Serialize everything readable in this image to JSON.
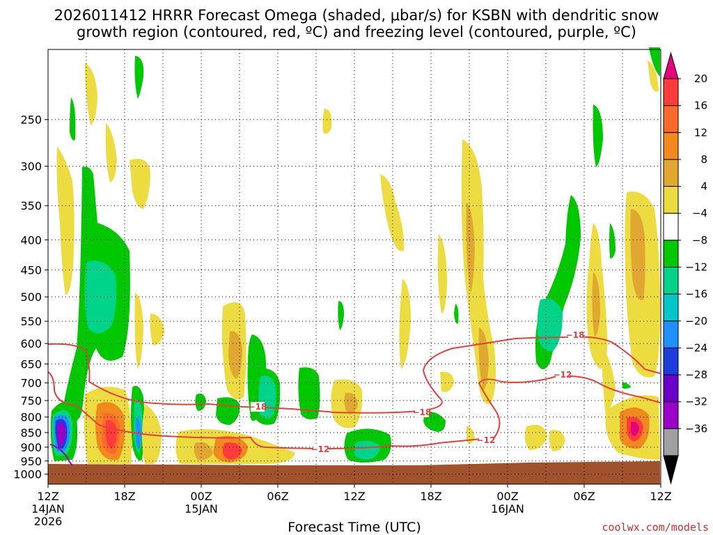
{
  "chart_data": {
    "type": "heatmap",
    "title": [
      "2026011412 HRRR Forecast Omega (shaded, μbar/s) for KSBN with dendritic snow",
      "growth region (contoured, red, ºC) and freezing level (contoured, purple, ºC)"
    ],
    "xlabel": "Forecast Time (UTC)",
    "ylabel": "",
    "x_ticks": [
      {
        "t": 0,
        "label": "12Z",
        "sub": [
          "14JAN",
          "2026"
        ]
      },
      {
        "t": 6,
        "label": "18Z",
        "sub": []
      },
      {
        "t": 12,
        "label": "00Z",
        "sub": [
          "15JAN"
        ]
      },
      {
        "t": 18,
        "label": "06Z",
        "sub": []
      },
      {
        "t": 24,
        "label": "12Z",
        "sub": []
      },
      {
        "t": 30,
        "label": "18Z",
        "sub": []
      },
      {
        "t": 36,
        "label": "00Z",
        "sub": [
          "16JAN"
        ]
      },
      {
        "t": 42,
        "label": "06Z",
        "sub": []
      },
      {
        "t": 48,
        "label": "12Z",
        "sub": []
      }
    ],
    "y_ticks": [
      250,
      300,
      350,
      400,
      450,
      500,
      550,
      600,
      650,
      700,
      750,
      800,
      850,
      900,
      950,
      1000
    ],
    "xlim": [
      0,
      48
    ],
    "ylim_hPa": [
      1040,
      190
    ],
    "grid": true,
    "colorbar": {
      "labels": [
        "20",
        "16",
        "12",
        "8",
        "4",
        "−4",
        "−8",
        "−12",
        "−16",
        "−20",
        "−24",
        "−28",
        "−32",
        "−36"
      ],
      "levels": [
        20,
        16,
        12,
        8,
        4,
        -4,
        -8,
        -12,
        -16,
        -20,
        -24,
        -28,
        -32,
        -36
      ],
      "colors": [
        "#e6007e",
        "#ff3b3b",
        "#ff6a2a",
        "#f08a1e",
        "#e0a830",
        "#ecdc40",
        "#ffffff",
        "#00c800",
        "#00d48a",
        "#00c8c8",
        "#1e90ff",
        "#1e3cdc",
        "#6a00c8",
        "#9a00c8",
        "#a0a0a0",
        "#000000"
      ]
    },
    "contours": {
      "dgz_labels": [
        "−18",
        "−18",
        "−12",
        "−18",
        "−12",
        "−12"
      ],
      "dgz_color": "#e2413e",
      "freezing_color": "#a000c8"
    },
    "ground_color": "#a0522d",
    "credit": "coolwx.com/models"
  }
}
